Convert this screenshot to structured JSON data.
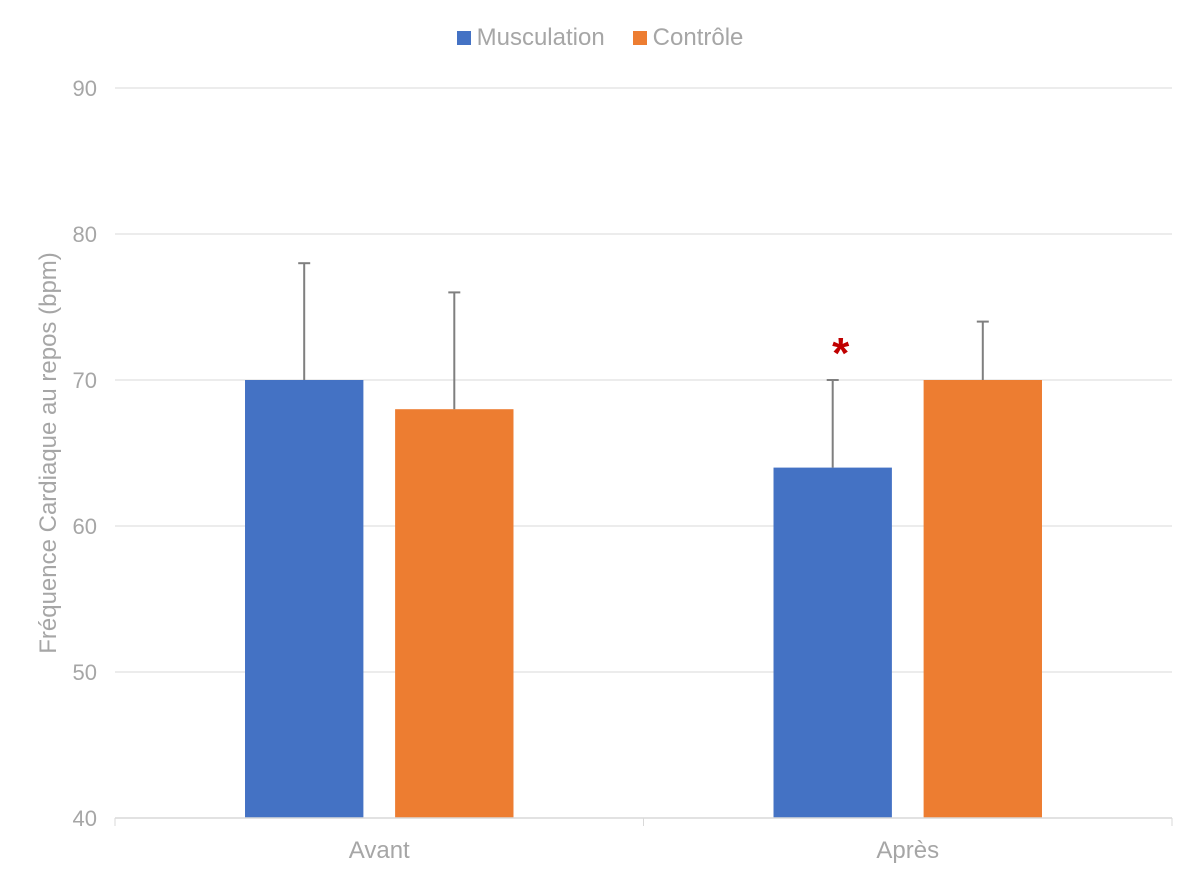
{
  "chart_data": {
    "type": "bar",
    "categories": [
      "Avant",
      "Après"
    ],
    "series": [
      {
        "name": "Musculation",
        "values": [
          70,
          64
        ],
        "errors": [
          8,
          6
        ],
        "color": "#4472c4"
      },
      {
        "name": "Contrôle",
        "values": [
          68,
          70
        ],
        "errors": [
          8,
          4
        ],
        "color": "#ed7d31"
      }
    ],
    "ylabel": "Fréquence Cardiaque au repos (bpm)",
    "xlabel": "",
    "ylim": [
      40,
      90
    ],
    "yticks": [
      40,
      50,
      60,
      70,
      80,
      90
    ],
    "grid": true,
    "legend_position": "top",
    "annotations": [
      {
        "text": "*",
        "category": "Après",
        "series": "Musculation",
        "color": "#c00000"
      }
    ],
    "axis_text_color": "#a6a6a6",
    "gridline_color": "#d9d9d9",
    "errorbar_color": "#7f7f7f"
  }
}
